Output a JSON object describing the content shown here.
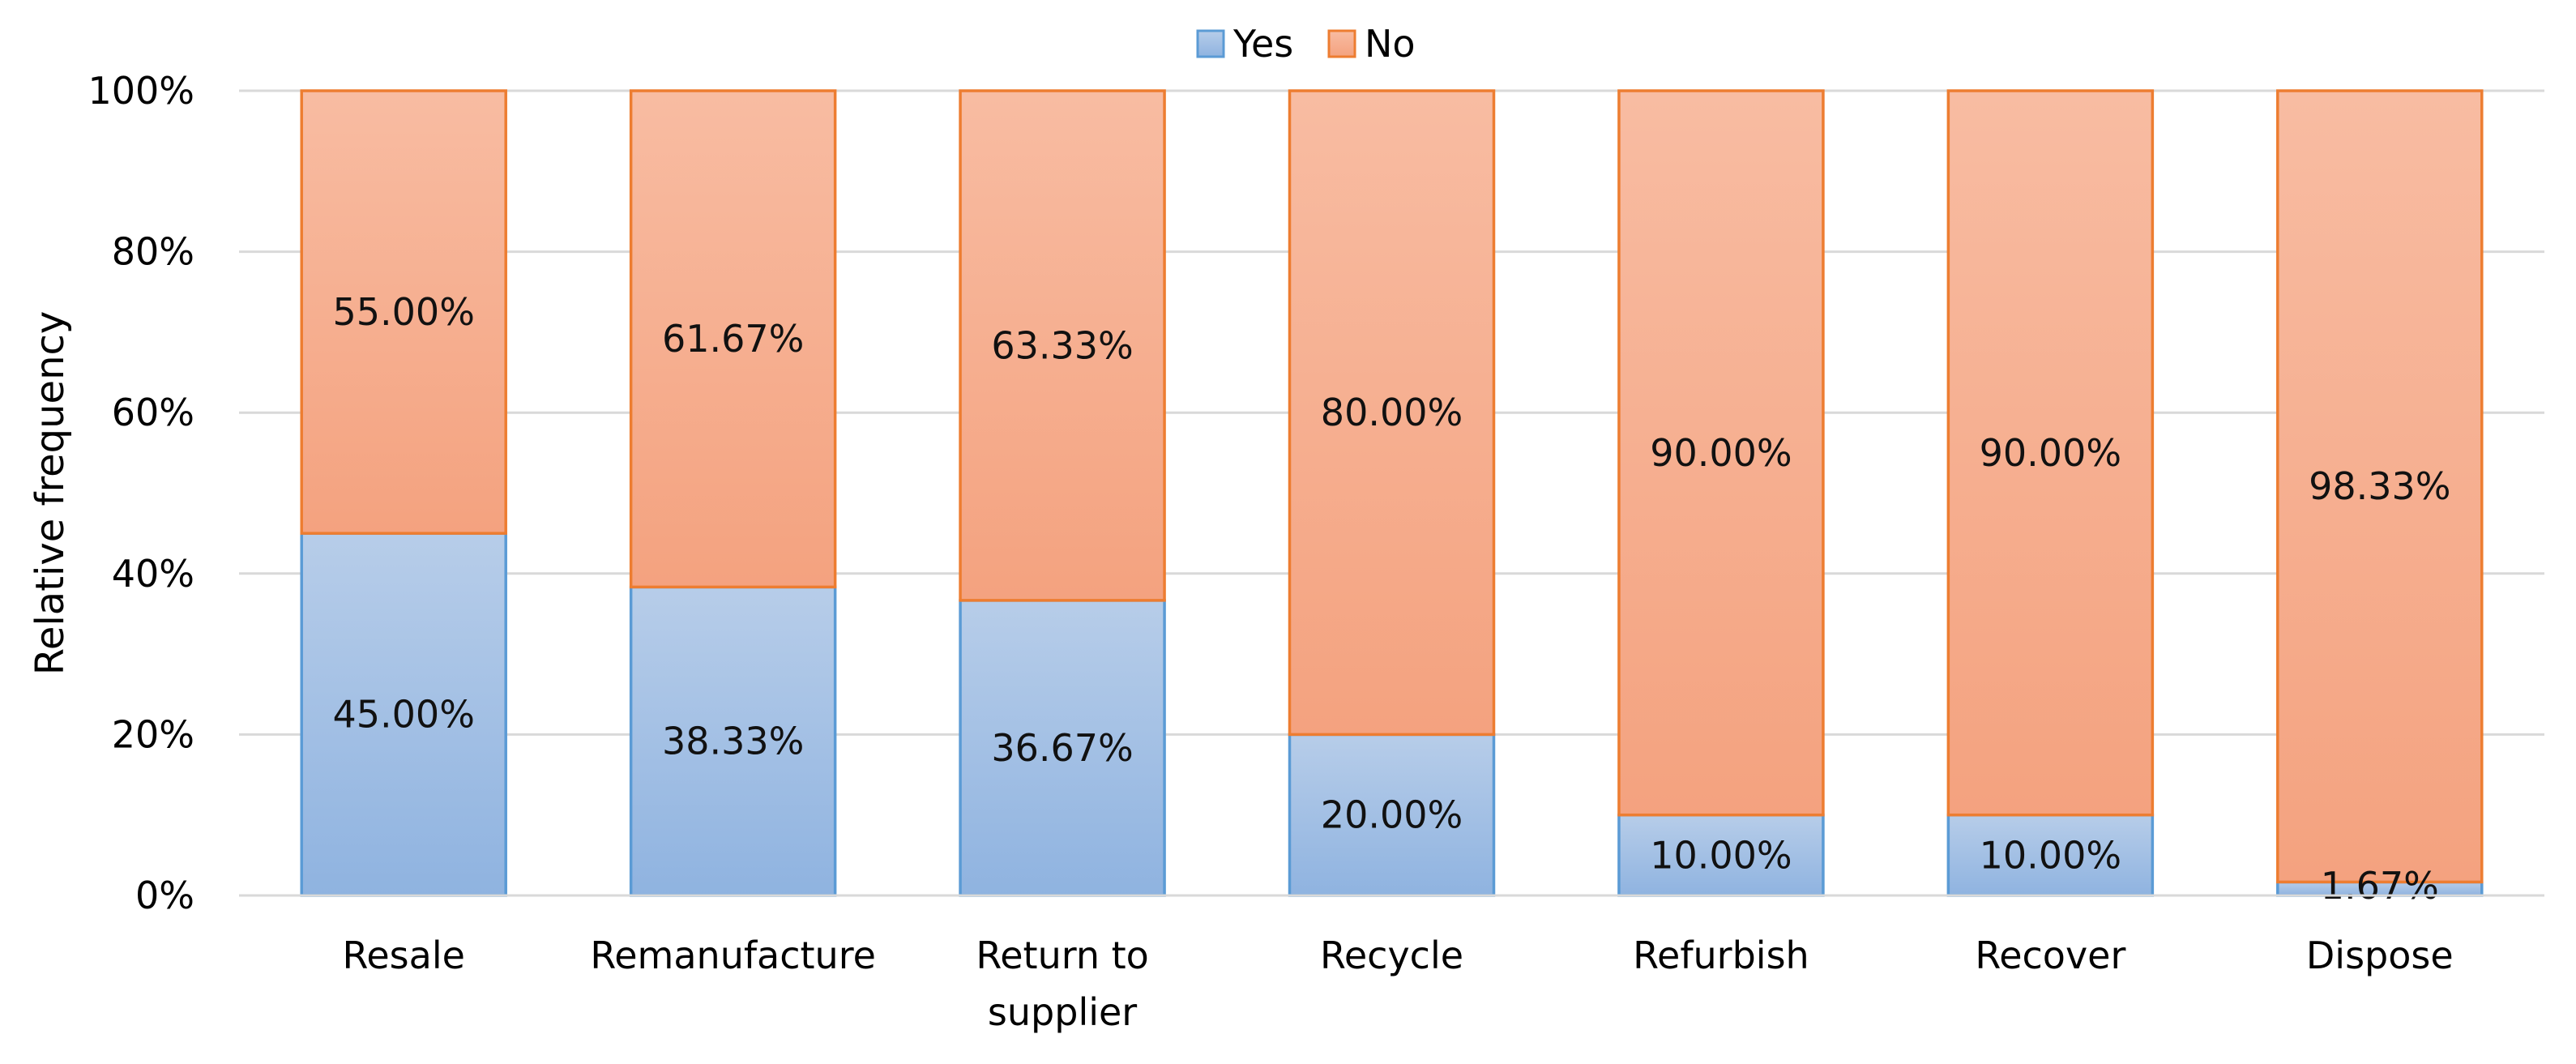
{
  "chart_data": {
    "type": "bar",
    "stacked": true,
    "categories": [
      "Resale",
      "Remanufacture",
      "Return to supplier",
      "Recycle",
      "Refurbish",
      "Recover",
      "Dispose"
    ],
    "category_label_lines": [
      [
        "Resale"
      ],
      [
        "Remanufacture"
      ],
      [
        "Return to",
        "supplier"
      ],
      [
        "Recycle"
      ],
      [
        "Refurbish"
      ],
      [
        "Recover"
      ],
      [
        "Dispose"
      ]
    ],
    "series": [
      {
        "name": "Yes",
        "values": [
          45.0,
          38.33,
          36.67,
          20.0,
          10.0,
          10.0,
          1.67
        ],
        "labels": [
          "45.00%",
          "38.33%",
          "36.67%",
          "20.00%",
          "10.00%",
          "10.00%",
          "1.67%"
        ],
        "fill_top": "#b7cde9",
        "fill_bottom": "#8fb3e0",
        "stroke": "#5b9bd5"
      },
      {
        "name": "No",
        "values": [
          55.0,
          61.67,
          63.33,
          80.0,
          90.0,
          90.0,
          98.33
        ],
        "labels": [
          "55.00%",
          "61.67%",
          "63.33%",
          "80.00%",
          "90.00%",
          "90.00%",
          "98.33%"
        ],
        "fill_top": "#f8bca2",
        "fill_bottom": "#f4a27f",
        "stroke": "#ed7d31"
      }
    ],
    "title": "",
    "xlabel": "",
    "ylabel": "Relative frequency",
    "ylim": [
      0,
      100
    ],
    "yticks": [
      0,
      20,
      40,
      60,
      80,
      100
    ],
    "ytick_labels": [
      "0%",
      "20%",
      "40%",
      "60%",
      "80%",
      "100%"
    ],
    "grid": true,
    "legend": {
      "position": "top-center",
      "entries": [
        "Yes",
        "No"
      ]
    }
  }
}
